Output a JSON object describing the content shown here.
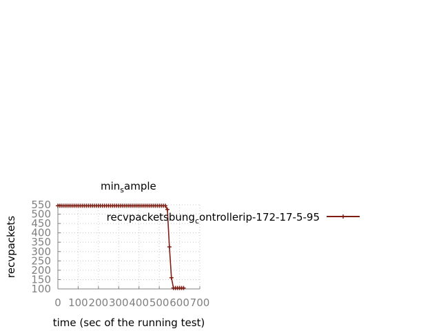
{
  "chart_data": {
    "type": "line",
    "title_main": "min",
    "title_sub": "s",
    "title_rest": "ample",
    "xlabel": "time (sec of the running test)",
    "ylabel": "recvpackets",
    "xlim": [
      0,
      700
    ],
    "ylim": [
      100,
      550
    ],
    "xticks": [
      0,
      100,
      200,
      300,
      400,
      500,
      600,
      700
    ],
    "yticks": [
      100,
      150,
      200,
      250,
      300,
      350,
      400,
      450,
      500,
      550
    ],
    "grid": true,
    "legend_position": "top-right",
    "legend_label_parts": [
      "recvpacketsbung",
      "c",
      "ontrollerip-172-17-5-95"
    ],
    "series": [
      {
        "name": "recvpacketsbung_controllerip-172-17-5-95",
        "color": "#7f1d12",
        "marker": "plus",
        "x": [
          0,
          10,
          20,
          30,
          40,
          50,
          60,
          70,
          80,
          90,
          100,
          110,
          120,
          130,
          140,
          150,
          160,
          170,
          180,
          190,
          200,
          210,
          220,
          230,
          240,
          250,
          260,
          270,
          280,
          290,
          300,
          310,
          320,
          330,
          340,
          350,
          360,
          370,
          380,
          390,
          400,
          410,
          420,
          430,
          440,
          450,
          460,
          470,
          480,
          490,
          500,
          510,
          520,
          530,
          540,
          550,
          560,
          570,
          580,
          590,
          600,
          610,
          620
        ],
        "y": [
          545,
          545,
          545,
          545,
          545,
          545,
          545,
          545,
          545,
          545,
          545,
          545,
          545,
          545,
          545,
          545,
          545,
          545,
          545,
          545,
          545,
          545,
          545,
          545,
          545,
          545,
          545,
          545,
          545,
          545,
          545,
          545,
          545,
          545,
          545,
          545,
          545,
          545,
          545,
          545,
          545,
          545,
          545,
          545,
          545,
          545,
          545,
          545,
          545,
          545,
          545,
          545,
          545,
          545,
          525,
          325,
          160,
          105,
          105,
          105,
          105,
          105,
          105
        ]
      }
    ]
  }
}
